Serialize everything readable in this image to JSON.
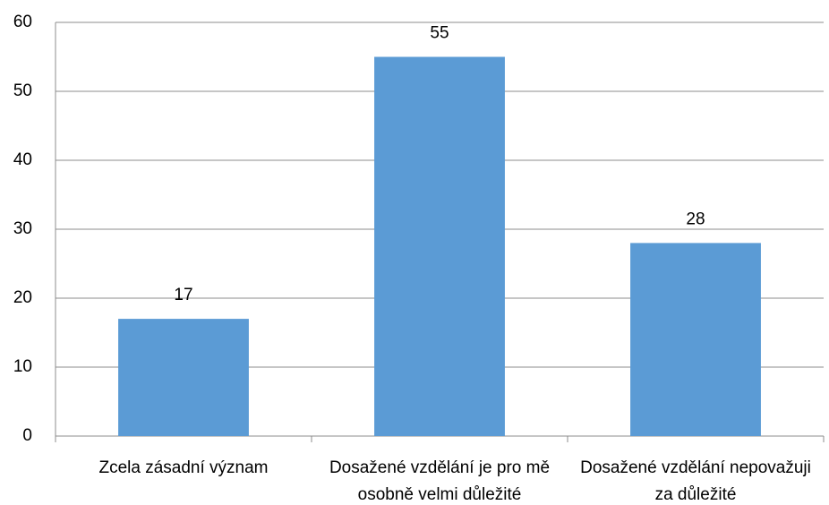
{
  "chart_data": {
    "type": "bar",
    "categories": [
      "Zcela zásadní význam",
      "Dosažené vzdělání je pro mě osobně velmi důležité",
      "Dosažené vzdělání nepovažuji za důležité"
    ],
    "values": [
      17,
      55,
      28
    ],
    "color": "#5b9bd5",
    "ylim": [
      0,
      60
    ],
    "yticks": [
      0,
      10,
      20,
      30,
      40,
      50,
      60
    ],
    "grid": true
  }
}
